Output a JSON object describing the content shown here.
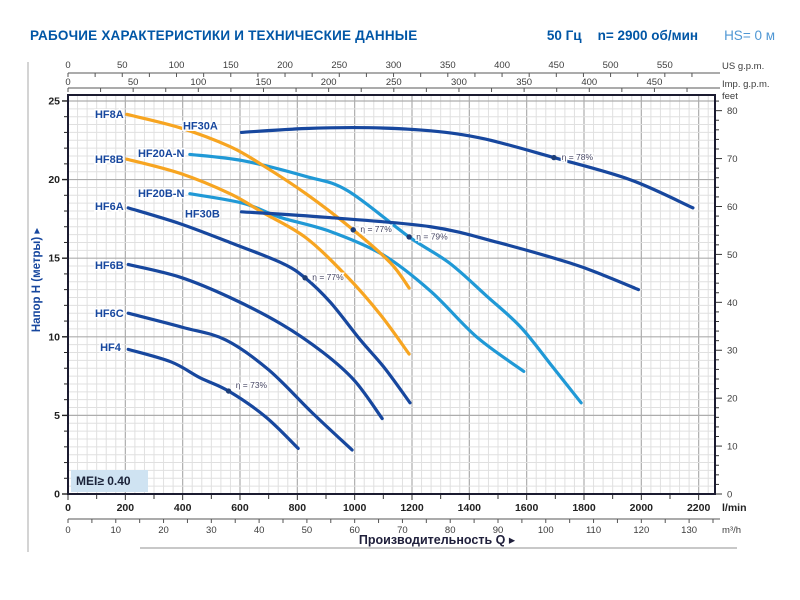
{
  "header": {
    "title": "РАБОЧИЕ ХАРАКТЕРИСТИКИ И ТЕХНИЧЕСКИЕ ДАННЫЕ",
    "frequency": "50 Гц",
    "speed": "n= 2900 об/мин",
    "suction_lift": "HS= 0 м"
  },
  "badge": {
    "text": "MEI≥ 0.40"
  },
  "colors": {
    "navy": "#17479E",
    "lightblue": "#2099D6",
    "orange": "#F7A521",
    "title_blue": "#0056A6",
    "hs_blue": "#4F97D4",
    "grid_minor": "#E0E0E0",
    "grid_major": "#ADADAD",
    "plot_border": "#1B1B30",
    "tick_text": "#3C3C3C",
    "axis_line": "#8F8F8F",
    "eta_text": "#474764",
    "badge_bg": "#CFE3F2",
    "badge_text": "#1A2238"
  },
  "chart_data": {
    "type": "line",
    "xlabel": "Производительность Q ▸",
    "ylabel": "Напор H (метры) ▸",
    "grid": "on",
    "axes": {
      "flow_lmin": {
        "label": "l/min",
        "tick_labels": [
          0,
          200,
          400,
          600,
          800,
          1000,
          1200,
          1400,
          1600,
          1800,
          2000,
          2200
        ],
        "minor_step": 100,
        "max": 2257
      },
      "flow_m3h": {
        "label": "m³/h",
        "tick_labels": [
          0,
          10,
          20,
          30,
          40,
          50,
          60,
          70,
          80,
          90,
          100,
          110,
          120,
          130
        ],
        "minor_step": 5
      },
      "flow_usgpm": {
        "label": "US g.p.m.",
        "tick_labels": [
          0,
          50,
          100,
          150,
          200,
          250,
          300,
          350,
          400,
          450,
          500,
          550
        ],
        "minor_step": 25
      },
      "flow_impgpm": {
        "label": "Imp. g.p.m.",
        "tick_labels": [
          0,
          50,
          100,
          150,
          200,
          250,
          300,
          350,
          400,
          450
        ],
        "minor_step": 25
      },
      "head_m": {
        "label": "Напор H (метры)",
        "tick_labels": [
          0,
          5,
          10,
          15,
          20,
          25
        ],
        "minor_step": 1,
        "max": 25.38
      },
      "head_feet": {
        "label": "feet",
        "tick_labels": [
          0,
          10,
          20,
          30,
          40,
          50,
          60,
          70,
          80
        ],
        "minor_step": 2
      }
    },
    "series": [
      {
        "name": "HF20A-N",
        "color": "lightblue",
        "label_q": 244,
        "label_h": 21.44,
        "points": [
          [
            425,
            21.6
          ],
          [
            610,
            21.2
          ],
          [
            830,
            20.2
          ],
          [
            975,
            19.3
          ],
          [
            1190,
            16.35
          ],
          [
            1330,
            14.7
          ],
          [
            1460,
            12.6
          ],
          [
            1580,
            10.6
          ],
          [
            1690,
            8.1
          ],
          [
            1790,
            5.8
          ]
        ]
      },
      {
        "name": "HF20B-N",
        "color": "lightblue",
        "label_q": 244,
        "label_h": 18.89,
        "points": [
          [
            425,
            19.1
          ],
          [
            610,
            18.5
          ],
          [
            740,
            17.6
          ],
          [
            915,
            16.7
          ],
          [
            1100,
            15.2
          ],
          [
            1265,
            12.9
          ],
          [
            1425,
            10.0
          ],
          [
            1590,
            7.8
          ]
        ]
      },
      {
        "name": "HF8A",
        "color": "orange",
        "label_q": 94,
        "label_h": 23.92,
        "points": [
          [
            205,
            24.15
          ],
          [
            390,
            23.3
          ],
          [
            565,
            22.1
          ],
          [
            680,
            20.9
          ],
          [
            830,
            19.1
          ],
          [
            995,
            16.8
          ],
          [
            1125,
            14.7
          ],
          [
            1190,
            13.1
          ]
        ]
      },
      {
        "name": "HF8B",
        "color": "orange",
        "label_q": 94,
        "label_h": 21.06,
        "points": [
          [
            205,
            21.3
          ],
          [
            390,
            20.4
          ],
          [
            565,
            19.1
          ],
          [
            680,
            17.9
          ],
          [
            830,
            16.3
          ],
          [
            975,
            13.8
          ],
          [
            1090,
            11.4
          ],
          [
            1190,
            8.9
          ]
        ]
      },
      {
        "name": "HF30A",
        "color": "navy",
        "label_q": 401,
        "label_h": 23.2,
        "points": [
          [
            605,
            23.0
          ],
          [
            830,
            23.25
          ],
          [
            1050,
            23.3
          ],
          [
            1265,
            23.1
          ],
          [
            1450,
            22.6
          ],
          [
            1695,
            21.4
          ],
          [
            1960,
            20.0
          ],
          [
            2180,
            18.2
          ]
        ]
      },
      {
        "name": "HF30B",
        "color": "navy",
        "label_q": 408,
        "label_h": 17.6,
        "points": [
          [
            605,
            17.95
          ],
          [
            900,
            17.6
          ],
          [
            1265,
            17.0
          ],
          [
            1500,
            16.0
          ],
          [
            1750,
            14.7
          ],
          [
            1870,
            13.9
          ],
          [
            1990,
            13.0
          ]
        ]
      },
      {
        "name": "HF6A",
        "color": "navy",
        "label_q": 94,
        "label_h": 18.07,
        "points": [
          [
            210,
            18.2
          ],
          [
            390,
            17.2
          ],
          [
            565,
            16.0
          ],
          [
            745,
            14.7
          ],
          [
            827,
            13.75
          ],
          [
            915,
            12.2
          ],
          [
            1020,
            9.8
          ],
          [
            1105,
            8.0
          ],
          [
            1193,
            5.8
          ]
        ]
      },
      {
        "name": "HF6B",
        "color": "navy",
        "label_q": 94,
        "label_h": 14.31,
        "points": [
          [
            210,
            14.6
          ],
          [
            390,
            13.8
          ],
          [
            565,
            12.5
          ],
          [
            745,
            10.8
          ],
          [
            890,
            9.0
          ],
          [
            1000,
            7.2
          ],
          [
            1096,
            4.8
          ]
        ]
      },
      {
        "name": "HF6C",
        "color": "navy",
        "label_q": 94,
        "label_h": 11.26,
        "points": [
          [
            210,
            11.5
          ],
          [
            400,
            10.6
          ],
          [
            550,
            9.8
          ],
          [
            700,
            7.9
          ],
          [
            850,
            5.2
          ],
          [
            991,
            2.8
          ]
        ]
      },
      {
        "name": "HF4",
        "color": "navy",
        "label_q": 112,
        "label_h": 9.1,
        "points": [
          [
            210,
            9.2
          ],
          [
            360,
            8.4
          ],
          [
            460,
            7.4
          ],
          [
            560,
            6.55
          ],
          [
            690,
            4.9
          ],
          [
            803,
            2.9
          ]
        ]
      }
    ],
    "efficiency_markers": [
      {
        "series": "HF8A",
        "text": "η = 77%",
        "q": 995,
        "h": 16.8,
        "label_q": 1020,
        "label_h": 16.65
      },
      {
        "series": "HF20A-N",
        "text": "η = 79%",
        "q": 1190,
        "h": 16.35,
        "label_q": 1215,
        "label_h": 16.2
      },
      {
        "series": "HF30A",
        "text": "η = 78%",
        "q": 1695,
        "h": 21.4,
        "label_q": 1722,
        "label_h": 21.25
      },
      {
        "series": "HF6A",
        "text": "η = 77%",
        "q": 827,
        "h": 13.75,
        "label_q": 852,
        "label_h": 13.6
      },
      {
        "series": "HF4",
        "text": "η = 73%",
        "q": 560,
        "h": 6.55,
        "label_q": 585,
        "label_h": 6.75
      }
    ]
  }
}
